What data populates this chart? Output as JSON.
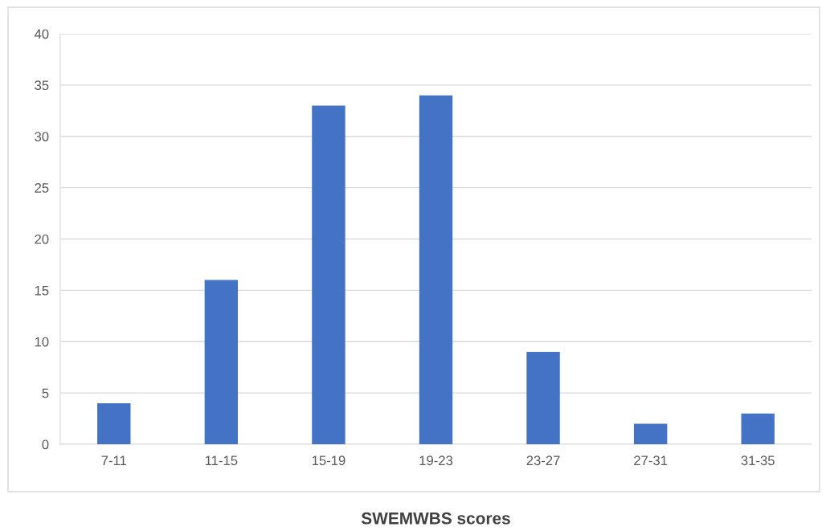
{
  "chart_data": {
    "type": "bar",
    "xlabel": "SWEMWBS scores",
    "categories": [
      "7-11",
      "11-15",
      "15-19",
      "19-23",
      "23-27",
      "27-31",
      "31-35"
    ],
    "values": [
      4,
      16,
      33,
      34,
      9,
      2,
      3
    ],
    "color": "#4472c4",
    "ylim": [
      0,
      40
    ],
    "yticks": [
      0,
      5,
      10,
      15,
      20,
      25,
      30,
      35,
      40
    ],
    "grid": "y",
    "legend": false
  }
}
